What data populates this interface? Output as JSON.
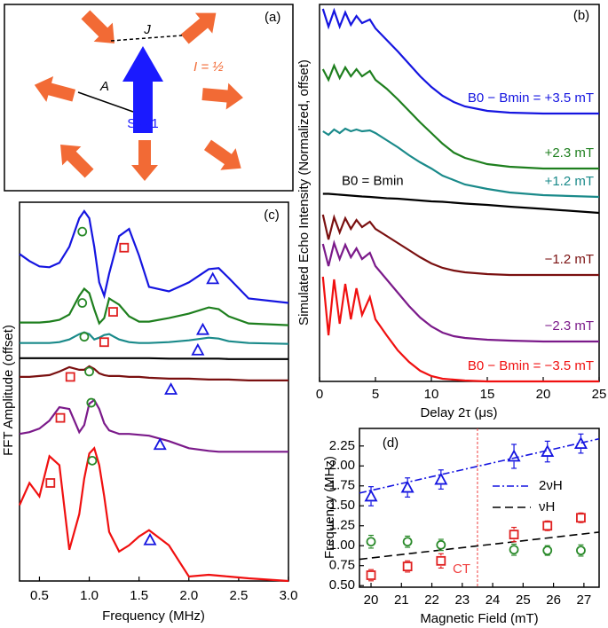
{
  "panel_a": {
    "panel_label": "(a)",
    "coupling_label": "J",
    "hyperfine_label": "A",
    "nuclear_spin_label": "I = ½",
    "electron_spin_label": "S = 1"
  },
  "chart_data": [
    {
      "type": "line",
      "panel_label": "(b)",
      "xlabel": "Delay 2τ (μs)",
      "ylabel": "Simulated Echo Intensity (Normalized, offset)",
      "xlim": [
        0,
        25
      ],
      "xticks": [
        0,
        5,
        10,
        15,
        20,
        25
      ],
      "ylim": [
        0,
        8.5
      ],
      "x": [
        0.3,
        0.8,
        1.3,
        1.8,
        2.3,
        2.8,
        3.3,
        3.8,
        4.5,
        5,
        6,
        7,
        8,
        9,
        10,
        11,
        12,
        13,
        15,
        17,
        20,
        25
      ],
      "series": [
        {
          "name": "B0 − Bmin = +3.5 mT",
          "color": "#1515e0",
          "values": [
            8.4,
            8.0,
            8.36,
            8.0,
            8.32,
            8.04,
            8.24,
            8.08,
            8.16,
            7.96,
            7.7,
            7.44,
            7.16,
            6.88,
            6.64,
            6.44,
            6.3,
            6.2,
            6.1,
            6.06,
            6.04,
            6.04
          ]
        },
        {
          "name": "+2.3 mT",
          "color": "#1e7f1e",
          "values": [
            7.04,
            6.8,
            7.12,
            6.84,
            7.08,
            6.88,
            7.04,
            6.88,
            7.0,
            6.8,
            6.6,
            6.36,
            6.1,
            5.84,
            5.6,
            5.36,
            5.16,
            5.04,
            4.9,
            4.84,
            4.8,
            4.8
          ]
        },
        {
          "name": "+1.2 mT",
          "color": "#1a8a8a",
          "values": [
            5.64,
            5.56,
            5.68,
            5.6,
            5.7,
            5.64,
            5.68,
            5.64,
            5.66,
            5.6,
            5.44,
            5.28,
            5.1,
            4.94,
            4.8,
            4.64,
            4.54,
            4.44,
            4.34,
            4.26,
            4.2,
            4.16
          ]
        },
        {
          "name": "B0 = Bmin",
          "color": "#000000",
          "values": [
            4.23,
            4.23,
            4.22,
            4.21,
            4.2,
            4.19,
            4.18,
            4.17,
            4.16,
            4.15,
            4.13,
            4.12,
            4.1,
            4.08,
            4.06,
            4.05,
            4.03,
            4.01,
            3.98,
            3.94,
            3.89,
            3.8
          ]
        },
        {
          "name": "−1.2 mT",
          "color": "#7a1010",
          "values": [
            3.76,
            3.2,
            3.7,
            3.36,
            3.68,
            3.44,
            3.64,
            3.48,
            3.6,
            3.44,
            3.28,
            3.12,
            2.96,
            2.8,
            2.66,
            2.56,
            2.5,
            2.46,
            2.42,
            2.4,
            2.4,
            2.4
          ]
        },
        {
          "name": "−2.3 mT",
          "color": "#7b1a8a",
          "values": [
            3.1,
            2.6,
            3.12,
            2.76,
            3.08,
            2.8,
            3.0,
            2.76,
            2.9,
            2.6,
            2.3,
            2.0,
            1.7,
            1.44,
            1.24,
            1.1,
            1.02,
            0.98,
            0.94,
            0.92,
            0.9,
            0.9
          ]
        },
        {
          "name": "B0 − Bmin = −3.5 mT",
          "color": "#f01010",
          "values": [
            2.36,
            1.04,
            2.3,
            1.3,
            2.2,
            1.4,
            2.1,
            1.5,
            1.9,
            1.4,
            1.04,
            0.7,
            0.44,
            0.24,
            0.12,
            0.06,
            0.04,
            0.02,
            0,
            0,
            0,
            0
          ]
        }
      ]
    },
    {
      "type": "line",
      "panel_label": "(c)",
      "xlabel": "Frequency (MHz)",
      "ylabel": "FFT Amplitude (offset)",
      "xlim": [
        0.3,
        3.0
      ],
      "xticks": [
        0.5,
        {
          "value": 1.0,
          "label": "1.0"
        },
        1.5,
        {
          "value": 2.0,
          "label": "2.0"
        },
        2.5,
        {
          "value": 3.0,
          "label": "3.0"
        }
      ],
      "ylim": [
        0,
        8.5
      ],
      "x": [
        0.3,
        0.4,
        0.5,
        0.6,
        0.7,
        0.8,
        0.9,
        0.95,
        1.0,
        1.05,
        1.1,
        1.15,
        1.2,
        1.3,
        1.4,
        1.5,
        1.6,
        1.8,
        2.0,
        2.2,
        2.3,
        2.4,
        2.6,
        3.0
      ],
      "series": [
        {
          "color": "#1515e0",
          "values": [
            7.34,
            7.18,
            7.06,
            7.04,
            7.14,
            7.5,
            8.14,
            8.3,
            8.14,
            7.5,
            6.7,
            6.4,
            6.9,
            7.74,
            7.9,
            7.3,
            6.6,
            6.5,
            6.7,
            7.0,
            7.02,
            6.8,
            6.34,
            6.24
          ]
        },
        {
          "color": "#1e7f1e",
          "values": [
            5.8,
            5.8,
            5.8,
            5.82,
            5.86,
            5.98,
            6.4,
            6.56,
            6.46,
            6.1,
            5.78,
            5.9,
            6.34,
            6.2,
            5.94,
            5.82,
            5.82,
            5.9,
            6.0,
            6.14,
            6.1,
            5.94,
            5.78,
            5.74
          ]
        },
        {
          "color": "#1a8a8a",
          "values": [
            5.34,
            5.34,
            5.34,
            5.34,
            5.36,
            5.42,
            5.54,
            5.58,
            5.54,
            5.42,
            5.46,
            5.52,
            5.54,
            5.42,
            5.36,
            5.34,
            5.34,
            5.36,
            5.4,
            5.46,
            5.44,
            5.38,
            5.34,
            5.32
          ]
        },
        {
          "color": "#000000",
          "values": [
            5.0,
            5.0,
            5.0,
            5.0,
            5.0,
            5.0,
            5.0,
            5.0,
            5.0,
            5.0,
            5.0,
            5.0,
            5.0,
            5.0,
            5.0,
            5.0,
            5.0,
            4.99,
            4.99,
            4.99,
            4.99,
            4.98,
            4.98,
            4.98
          ]
        },
        {
          "color": "#7a1010",
          "values": [
            4.58,
            4.58,
            4.6,
            4.62,
            4.7,
            4.8,
            4.74,
            4.74,
            4.82,
            4.76,
            4.66,
            4.62,
            4.6,
            4.6,
            4.58,
            4.58,
            4.56,
            4.54,
            4.54,
            4.52,
            4.52,
            4.52,
            4.5,
            4.5
          ]
        },
        {
          "color": "#7b1a8a",
          "values": [
            3.3,
            3.34,
            3.42,
            3.6,
            3.9,
            3.86,
            3.34,
            3.5,
            3.98,
            4.06,
            3.86,
            3.54,
            3.38,
            3.3,
            3.3,
            3.28,
            3.26,
            3.14,
            2.98,
            2.92,
            2.9,
            2.9,
            2.9,
            2.9
          ]
        },
        {
          "color": "#f01010",
          "values": [
            1.7,
            2.2,
            1.9,
            2.8,
            2.6,
            0.7,
            1.5,
            2.3,
            2.86,
            2.98,
            2.6,
            1.9,
            1.1,
            0.66,
            0.8,
            1.0,
            1.14,
            0.8,
            0.1,
            0.14,
            0.12,
            0.1,
            0.06,
            0.0
          ]
        }
      ],
      "markers": [
        {
          "symbol": "circle",
          "color": "#2a8a2a",
          "x": [
            0.93,
            0.93,
            0.95,
            1.0,
            1.02,
            1.03
          ],
          "values": [
            7.84,
            6.24,
            5.48,
            4.7,
            4.0,
            2.7
          ]
        },
        {
          "symbol": "square",
          "color": "#e02020",
          "x": [
            1.35,
            1.24,
            1.15,
            0.81,
            0.71,
            0.61
          ],
          "values": [
            7.48,
            6.04,
            5.36,
            4.58,
            3.66,
            2.2
          ]
        },
        {
          "symbol": "triangle",
          "color": "#1515e0",
          "x": [
            2.24,
            2.14,
            2.09,
            1.82,
            1.71,
            1.61
          ],
          "values": [
            6.78,
            5.64,
            5.18,
            4.3,
            3.06,
            0.92
          ]
        }
      ]
    },
    {
      "type": "scatter",
      "panel_label": "(d)",
      "xlabel": "Magnetic Field (mT)",
      "ylabel": "Frequency (MHz)",
      "xlim": [
        19.62,
        27.5
      ],
      "xticks": [
        20,
        21,
        22,
        23,
        24,
        25,
        26,
        27
      ],
      "ylim": [
        0.48,
        2.47
      ],
      "yticks": [
        {
          "value": 0.5,
          "label": "0.50"
        },
        0.75,
        {
          "value": 1.0,
          "label": "1.00"
        },
        1.25,
        {
          "value": 1.5,
          "label": "1.50"
        },
        1.75,
        {
          "value": 2.0,
          "label": "2.00"
        },
        2.25
      ],
      "series": [
        {
          "symbol": "triangle",
          "color": "#1515e0",
          "x": [
            20,
            21.2,
            22.3,
            24.7,
            25.8,
            26.9
          ],
          "values": [
            1.62,
            1.73,
            1.83,
            2.12,
            2.18,
            2.28
          ],
          "errors": [
            0.12,
            0.12,
            0.12,
            0.15,
            0.13,
            0.12
          ]
        },
        {
          "symbol": "square",
          "color": "#e02020",
          "x": [
            20,
            21.2,
            22.3,
            24.7,
            25.8,
            26.9
          ],
          "values": [
            0.63,
            0.74,
            0.81,
            1.14,
            1.25,
            1.35
          ],
          "errors": [
            0.07,
            0.07,
            0.09,
            0.09,
            0.06,
            0.06
          ]
        },
        {
          "symbol": "circle",
          "color": "#2a8a2a",
          "x": [
            20,
            21.2,
            22.3,
            24.7,
            25.8,
            26.9
          ],
          "values": [
            1.05,
            1.05,
            1.01,
            0.95,
            0.94,
            0.94
          ],
          "errors": [
            0.08,
            0.07,
            0.07,
            0.07,
            0.06,
            0.07
          ]
        }
      ],
      "lines": [
        {
          "name": "2νH",
          "color": "#1515e0",
          "style": "dashdot",
          "x": [
            19.62,
            27.5
          ],
          "values": [
            1.66,
            2.34
          ]
        },
        {
          "name": "νH",
          "color": "#000000",
          "style": "dashed",
          "x": [
            19.62,
            27.5
          ],
          "values": [
            0.83,
            1.17
          ]
        }
      ],
      "vline": {
        "x": 23.5,
        "label": "CT",
        "color": "#f04040"
      }
    }
  ]
}
